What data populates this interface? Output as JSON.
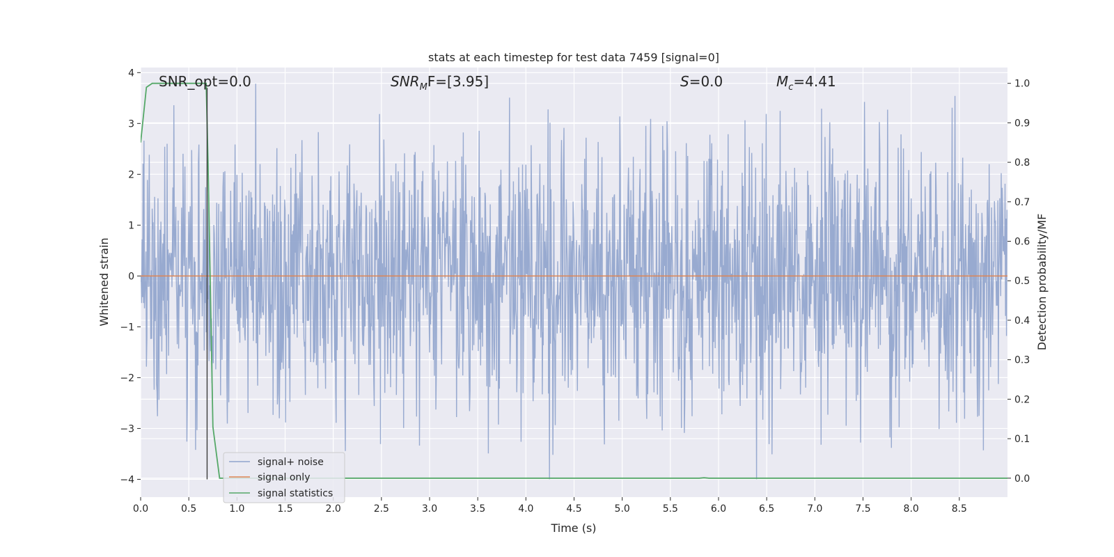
{
  "chart_data": {
    "type": "line",
    "title": "stats at each timestep for test data 7459 [signal=0]",
    "xlabel": "Time (s)",
    "ylabel_left": "Whitened strain",
    "ylabel_right": "Detection probability/MF",
    "xlim": [
      0.0,
      9.0
    ],
    "ylim_left": [
      -4.35,
      4.1
    ],
    "ylim_right": [
      -0.048,
      1.04
    ],
    "x_ticks": [
      "0.0",
      "0.5",
      "1.0",
      "1.5",
      "2.0",
      "2.5",
      "3.0",
      "3.5",
      "4.0",
      "4.5",
      "5.0",
      "5.5",
      "6.0",
      "6.5",
      "7.0",
      "7.5",
      "8.0",
      "8.5"
    ],
    "y_ticks_left": [
      "−4",
      "−3",
      "−2",
      "−1",
      "0",
      "1",
      "2",
      "3",
      "4"
    ],
    "y_ticks_right": [
      "0.0",
      "0.1",
      "0.2",
      "0.3",
      "0.4",
      "0.5",
      "0.6",
      "0.7",
      "0.8",
      "0.9",
      "1.0"
    ],
    "grid": true,
    "legend_position": "lower-left",
    "annotations": {
      "snr_opt": "SNR_opt=0.0",
      "snr_mf_label": "SNR",
      "snr_mf_sub": "M",
      "snr_mf_tail": "F=[3.95]",
      "s_label": "S",
      "s_value": "=0.0",
      "mc_label": "M",
      "mc_sub": "c",
      "mc_value": "=4.41"
    },
    "marker_line": {
      "x": 0.69,
      "y_from": -4.0,
      "y_to": 3.7
    },
    "series": [
      {
        "name": "signal+ noise",
        "color": "#8fa3cc",
        "axis": "left",
        "description_type": "noise",
        "amplitude_typical": 1.3,
        "samples_per_second": 200
      },
      {
        "name": "signal only",
        "color": "#dd8452",
        "axis": "left",
        "x": [
          0.0,
          9.0
        ],
        "y": [
          0.0,
          0.0
        ]
      },
      {
        "name": "signal statistics",
        "color": "#55a868",
        "axis": "right",
        "x": [
          0.0,
          0.06,
          0.12,
          0.2,
          0.4,
          0.6,
          0.68,
          0.7,
          0.75,
          0.82,
          1.0,
          2.0,
          3.0,
          4.0,
          5.0,
          5.8,
          5.85,
          5.9,
          6.0,
          7.0,
          8.0,
          8.9,
          9.0
        ],
        "y": [
          0.85,
          0.99,
          1.0,
          1.0,
          1.0,
          1.0,
          1.0,
          0.8,
          0.13,
          0.0,
          0.0,
          0.0,
          0.0,
          0.0,
          0.0,
          0.0,
          0.001,
          0.0,
          0.0,
          0.0,
          0.0,
          0.0,
          0.0
        ]
      }
    ]
  }
}
